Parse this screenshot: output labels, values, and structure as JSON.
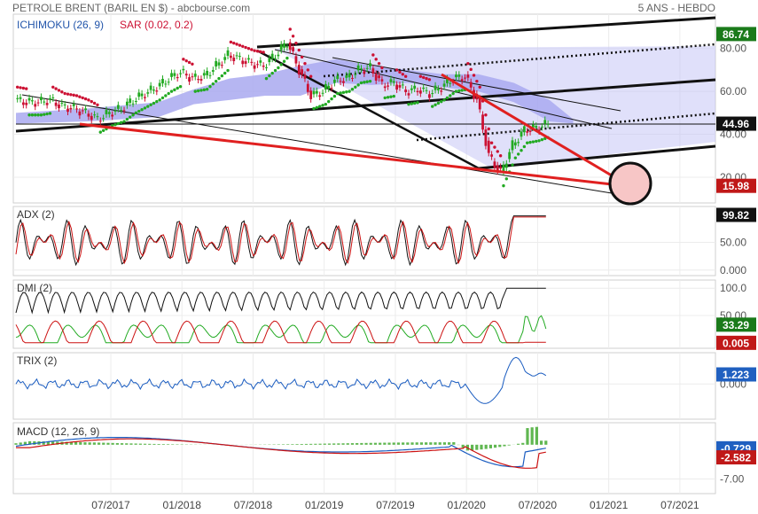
{
  "header": {
    "title": "PETROLE BRENT (BARIL EN $) - abcbourse.com",
    "period": "5 ANS - HEBDO"
  },
  "colors": {
    "candle_up": "#22aa22",
    "candle_down": "#cc1133",
    "cloud": "#c6c6f6",
    "trend_red": "#e02020",
    "sar_up": "#22aa22",
    "sar_down": "#cc1133",
    "adx": "#111111",
    "dmi_plus": "#22aa22",
    "dmi_minus": "#cc1111",
    "trix": "#1a5cc0",
    "macd_line": "#1a5cc0",
    "macd_signal": "#cc1111",
    "macd_hist": "#44aa33",
    "tag_green": "#1a7a1a",
    "tag_blue": "#2060c0",
    "tag_red": "#c01818",
    "tag_black": "#111111"
  },
  "chart_data": [
    {
      "type": "line",
      "panel": "price",
      "indicators": [
        "ICHIMOKU (26, 9)",
        "SAR (0.02, 0.2)"
      ],
      "yticks": [
        20,
        40,
        60,
        80
      ],
      "ytick_labels": [
        "20.00",
        "40.00",
        "60.00",
        "80.00"
      ],
      "ylim": [
        8,
        96
      ],
      "series": [
        {
          "x": [
            "2016-11",
            "2016-12",
            "2017-01",
            "2017-02",
            "2017-03",
            "2017-04",
            "2017-05",
            "2017-06",
            "2017-07",
            "2017-08",
            "2017-09",
            "2017-10",
            "2017-11",
            "2017-12",
            "2018-01",
            "2018-02",
            "2018-03",
            "2018-04",
            "2018-05",
            "2018-06",
            "2018-07",
            "2018-08",
            "2018-09",
            "2018-10",
            "2018-11",
            "2018-12",
            "2019-01",
            "2019-02",
            "2019-03",
            "2019-04",
            "2019-05",
            "2019-06",
            "2019-07",
            "2019-08",
            "2019-09",
            "2019-10",
            "2019-11",
            "2019-12",
            "2020-01",
            "2020-02",
            "2020-03",
            "2020-04",
            "2020-05",
            "2020-06",
            "2020-07",
            "2020-08"
          ],
          "values": [
            56,
            55,
            55,
            56,
            53,
            52,
            50,
            47,
            50,
            52,
            56,
            59,
            62,
            66,
            69,
            66,
            67,
            72,
            77,
            75,
            73,
            72,
            77,
            83,
            70,
            58,
            60,
            65,
            66,
            70,
            71,
            63,
            64,
            60,
            61,
            59,
            62,
            66,
            67,
            56,
            30,
            22,
            35,
            42,
            43,
            45
          ]
        }
      ],
      "cloud": {
        "x": [
          "2016-11",
          "2017-05",
          "2017-11",
          "2018-02",
          "2018-05",
          "2018-08",
          "2018-11",
          "2019-02",
          "2019-05",
          "2019-08",
          "2019-11",
          "2020-02",
          "2020-05",
          "2020-08",
          "2020-10"
        ],
        "upper": [
          50,
          52,
          55,
          61,
          66,
          68,
          72,
          75,
          72,
          70,
          68,
          68,
          64,
          56,
          47
        ],
        "lower": [
          45,
          46,
          48,
          54,
          56,
          58,
          58,
          64,
          63,
          64,
          62,
          60,
          55,
          46,
          45
        ]
      },
      "tags": [
        {
          "label": "86.74",
          "value": 86.74,
          "color": "tag_green"
        },
        {
          "label": "44.96",
          "value": 44.96,
          "color": "tag_black"
        },
        {
          "label": "15.98",
          "value": 15.98,
          "color": "tag_red"
        }
      ]
    },
    {
      "type": "line",
      "panel": "adx",
      "title": "ADX (2)",
      "ylim": [
        -10,
        115
      ],
      "yticks": [
        0,
        50
      ],
      "ytick_labels": [
        "0.000",
        "50.00"
      ],
      "tags": [
        {
          "label": "99.82",
          "value": 99.82,
          "color": "tag_black"
        }
      ]
    },
    {
      "type": "line",
      "panel": "dmi",
      "title": "DMI (2)",
      "ylim": [
        -10,
        115
      ],
      "yticks": [
        100,
        50
      ],
      "ytick_labels": [
        "100.0",
        "50.00"
      ],
      "tags": [
        {
          "label": "33.29",
          "value": 33.29,
          "color": "tag_green"
        },
        {
          "label": "0.005",
          "value": 0.005,
          "color": "tag_red"
        }
      ]
    },
    {
      "type": "line",
      "panel": "trix",
      "title": "TRIX (2)",
      "ylim": [
        -4.5,
        4.0
      ],
      "yticks": [
        0
      ],
      "ytick_labels": [
        "0.000"
      ],
      "tags": [
        {
          "label": "1.223",
          "value": 1.223,
          "color": "tag_blue"
        }
      ]
    },
    {
      "type": "line",
      "panel": "macd",
      "title": "MACD (12, 26, 9)",
      "ylim": [
        -10,
        4.5
      ],
      "yticks": [
        -7
      ],
      "ytick_labels": [
        "-7.00"
      ],
      "tags": [
        {
          "label": "-0.729",
          "value": -0.729,
          "color": "tag_blue"
        },
        {
          "label": "-2.582",
          "value": -2.582,
          "color": "tag_red"
        }
      ]
    }
  ],
  "xaxis": {
    "tick_labels": [
      "07/2017",
      "01/2018",
      "07/2018",
      "01/2019",
      "07/2019",
      "01/2020",
      "07/2020",
      "01/2021",
      "07/2021"
    ]
  }
}
